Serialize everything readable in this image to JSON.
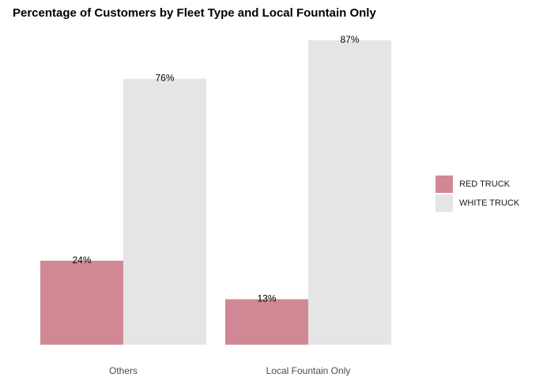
{
  "chart_data": {
    "type": "bar",
    "title": "Percentage of Customers by Fleet Type and Local Fountain Only",
    "categories": [
      "Others",
      "Local Fountain Only"
    ],
    "series": [
      {
        "name": "RED TRUCK",
        "values": [
          24,
          13
        ],
        "labels": [
          "24%",
          "13%"
        ],
        "color": "#d08894"
      },
      {
        "name": "WHITE TRUCK",
        "values": [
          76,
          87
        ],
        "labels": [
          "76%",
          "87%"
        ],
        "color": "#e5e5e5"
      }
    ],
    "ylim": [
      0,
      87
    ],
    "xlabel": "",
    "ylabel": "",
    "grid": false,
    "legend_position": "right"
  }
}
